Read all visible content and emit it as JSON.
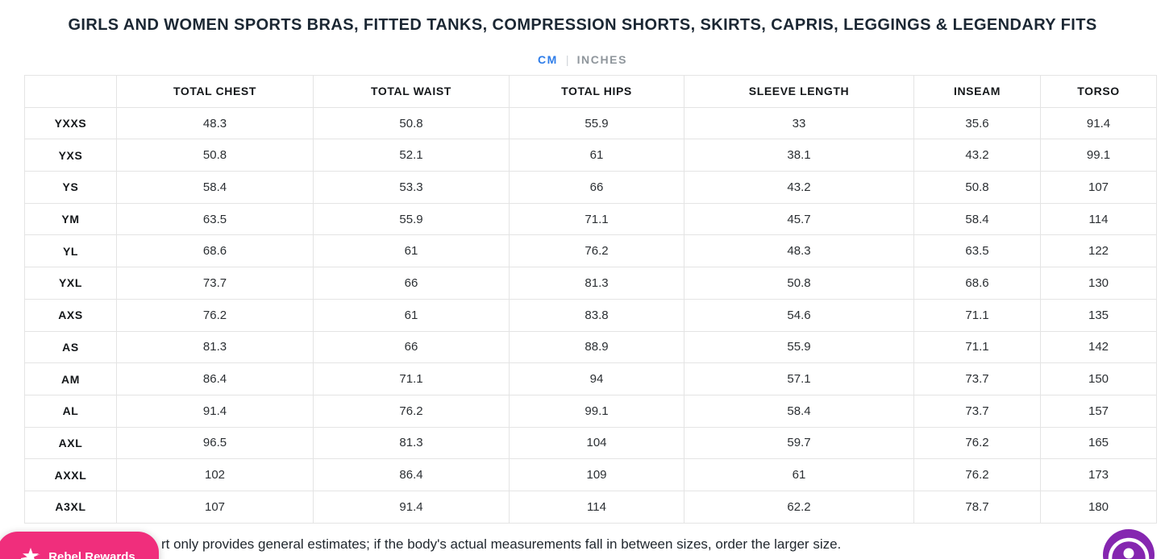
{
  "title": "GIRLS AND WOMEN SPORTS BRAS, FITTED TANKS, COMPRESSION SHORTS, SKIRTS, CAPRIS, LEGGINGS & LEGENDARY FITS",
  "unit_toggle": {
    "cm_label": "CM",
    "divider": "|",
    "inches_label": "INCHES",
    "selected": "CM",
    "active_color": "#2e7de9",
    "inactive_color": "#8f969c"
  },
  "table": {
    "headers": [
      "",
      "TOTAL CHEST",
      "TOTAL WAIST",
      "TOTAL HIPS",
      "SLEEVE LENGTH",
      "INSEAM",
      "TORSO"
    ],
    "rows": [
      {
        "size": "YXXS",
        "values": [
          "48.3",
          "50.8",
          "55.9",
          "33",
          "35.6",
          "91.4"
        ]
      },
      {
        "size": "YXS",
        "values": [
          "50.8",
          "52.1",
          "61",
          "38.1",
          "43.2",
          "99.1"
        ]
      },
      {
        "size": "YS",
        "values": [
          "58.4",
          "53.3",
          "66",
          "43.2",
          "50.8",
          "107"
        ]
      },
      {
        "size": "YM",
        "values": [
          "63.5",
          "55.9",
          "71.1",
          "45.7",
          "58.4",
          "114"
        ]
      },
      {
        "size": "YL",
        "values": [
          "68.6",
          "61",
          "76.2",
          "48.3",
          "63.5",
          "122"
        ]
      },
      {
        "size": "YXL",
        "values": [
          "73.7",
          "66",
          "81.3",
          "50.8",
          "68.6",
          "130"
        ]
      },
      {
        "size": "AXS",
        "values": [
          "76.2",
          "61",
          "83.8",
          "54.6",
          "71.1",
          "135"
        ]
      },
      {
        "size": "AS",
        "values": [
          "81.3",
          "66",
          "88.9",
          "55.9",
          "71.1",
          "142"
        ]
      },
      {
        "size": "AM",
        "values": [
          "86.4",
          "71.1",
          "94",
          "57.1",
          "73.7",
          "150"
        ]
      },
      {
        "size": "AL",
        "values": [
          "91.4",
          "76.2",
          "99.1",
          "58.4",
          "73.7",
          "157"
        ]
      },
      {
        "size": "AXL",
        "values": [
          "96.5",
          "81.3",
          "104",
          "59.7",
          "76.2",
          "165"
        ]
      },
      {
        "size": "AXXL",
        "values": [
          "102",
          "86.4",
          "109",
          "61",
          "76.2",
          "173"
        ]
      },
      {
        "size": "A3XL",
        "values": [
          "107",
          "91.4",
          "114",
          "62.2",
          "78.7",
          "180"
        ]
      }
    ]
  },
  "footnote": {
    "visible_text": "rt only provides general estimates; if the body's actual measurements fall in between sizes, order the larger size."
  },
  "rewards_button": {
    "label": "Rebel Rewards",
    "color": "#f02e7c"
  },
  "accessibility_widget": {
    "color": "#8526b0"
  }
}
